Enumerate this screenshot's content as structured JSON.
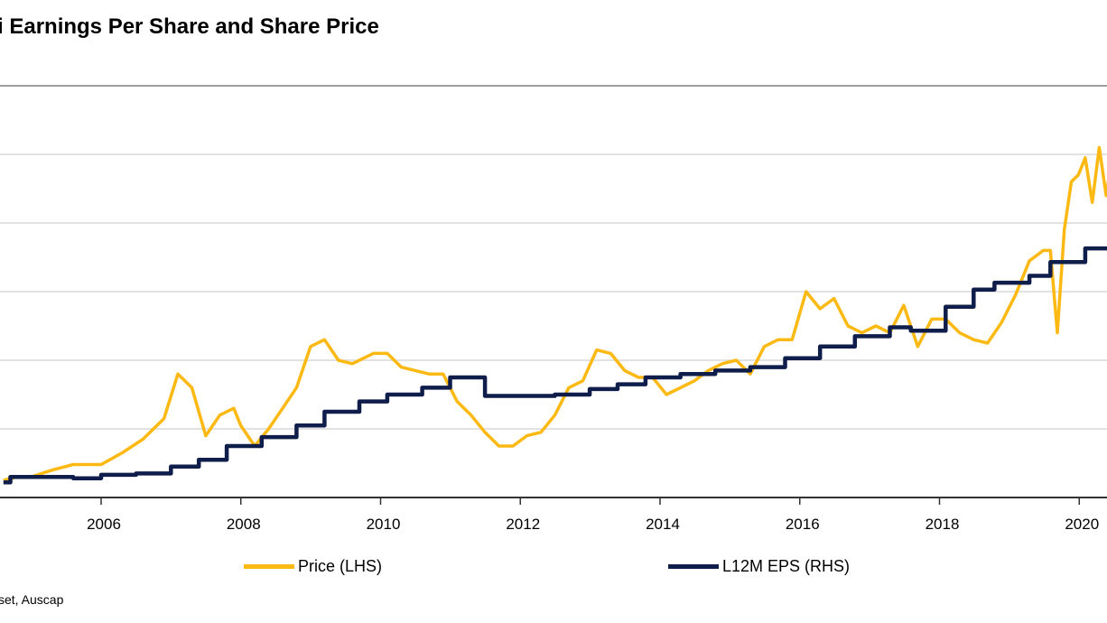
{
  "chart_data": {
    "type": "line",
    "title": "i Earnings Per Share and Share Price",
    "x_ticks": [
      "2006",
      "2008",
      "2010",
      "2012",
      "2014",
      "2016",
      "2018",
      "2020"
    ],
    "xlim": [
      2004.6,
      2020.5
    ],
    "grid": true,
    "legend_placement": "bottom",
    "series": [
      {
        "name": "Price (LHS)",
        "color": "#FDB913",
        "axis": "left",
        "ylim": [
          0,
          6
        ],
        "x": [
          2004.6,
          2004.8,
          2005.0,
          2005.3,
          2005.6,
          2006.0,
          2006.3,
          2006.6,
          2006.9,
          2007.1,
          2007.3,
          2007.5,
          2007.7,
          2007.9,
          2008.0,
          2008.2,
          2008.4,
          2008.6,
          2008.8,
          2009.0,
          2009.2,
          2009.4,
          2009.6,
          2009.9,
          2010.1,
          2010.3,
          2010.5,
          2010.7,
          2010.9,
          2011.1,
          2011.3,
          2011.5,
          2011.7,
          2011.9,
          2012.1,
          2012.3,
          2012.5,
          2012.7,
          2012.9,
          2013.1,
          2013.3,
          2013.5,
          2013.7,
          2013.9,
          2014.1,
          2014.3,
          2014.5,
          2014.7,
          2014.9,
          2015.1,
          2015.3,
          2015.5,
          2015.7,
          2015.9,
          2016.1,
          2016.3,
          2016.5,
          2016.7,
          2016.9,
          2017.1,
          2017.3,
          2017.5,
          2017.7,
          2017.9,
          2018.1,
          2018.3,
          2018.5,
          2018.7,
          2018.9,
          2019.1,
          2019.3,
          2019.5,
          2019.6,
          2019.7,
          2019.8,
          2019.9,
          2020.0,
          2020.1,
          2020.2,
          2020.3,
          2020.4,
          2020.5
        ],
        "values": [
          0.25,
          0.3,
          0.3,
          0.4,
          0.48,
          0.48,
          0.65,
          0.85,
          1.15,
          1.8,
          1.6,
          0.9,
          1.2,
          1.3,
          1.05,
          0.75,
          1.0,
          1.3,
          1.6,
          2.2,
          2.3,
          2.0,
          1.95,
          2.1,
          2.1,
          1.9,
          1.85,
          1.8,
          1.8,
          1.4,
          1.2,
          0.95,
          0.75,
          0.75,
          0.9,
          0.95,
          1.2,
          1.6,
          1.7,
          2.15,
          2.1,
          1.85,
          1.75,
          1.75,
          1.5,
          1.6,
          1.7,
          1.85,
          1.95,
          2.0,
          1.8,
          2.2,
          2.3,
          2.3,
          3.0,
          2.75,
          2.9,
          2.5,
          2.4,
          2.5,
          2.4,
          2.8,
          2.2,
          2.6,
          2.6,
          2.4,
          2.3,
          2.25,
          2.55,
          2.95,
          3.45,
          3.6,
          3.6,
          2.4,
          3.9,
          4.6,
          4.7,
          4.95,
          4.3,
          5.1,
          4.4,
          5.05
        ]
      },
      {
        "name": "L12M EPS (RHS)",
        "color": "#0E1D4A",
        "axis": "right",
        "ylim": [
          0,
          6
        ],
        "x": [
          2004.6,
          2004.7,
          2005.1,
          2005.6,
          2006.0,
          2006.5,
          2007.0,
          2007.4,
          2007.8,
          2008.3,
          2008.8,
          2009.2,
          2009.7,
          2010.1,
          2010.6,
          2011.0,
          2011.5,
          2012.0,
          2012.5,
          2013.0,
          2013.4,
          2013.8,
          2014.3,
          2014.8,
          2015.3,
          2015.8,
          2016.3,
          2016.8,
          2017.3,
          2017.6,
          2018.1,
          2018.5,
          2018.8,
          2019.3,
          2019.6,
          2020.1,
          2020.5
        ],
        "values": [
          0.22,
          0.3,
          0.3,
          0.28,
          0.33,
          0.35,
          0.45,
          0.55,
          0.75,
          0.88,
          1.05,
          1.25,
          1.4,
          1.5,
          1.6,
          1.75,
          1.48,
          1.48,
          1.5,
          1.58,
          1.65,
          1.75,
          1.8,
          1.85,
          1.9,
          2.03,
          2.2,
          2.35,
          2.48,
          2.43,
          2.78,
          3.03,
          3.13,
          3.23,
          3.43,
          3.63,
          3.93
        ]
      }
    ],
    "source_text": "set, Auscap"
  }
}
